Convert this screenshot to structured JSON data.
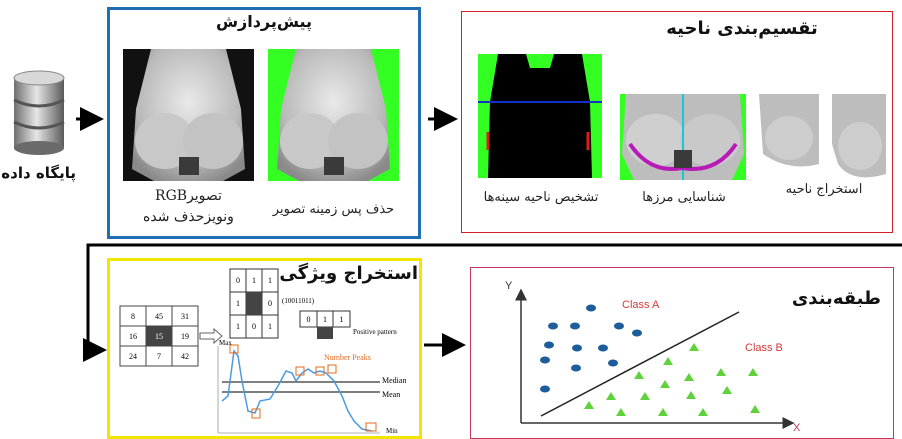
{
  "database": {
    "label": "پایگاه داده"
  },
  "preprocessing": {
    "title": "پیش‌پردازش",
    "caption_left_1": "تصویرRGB",
    "caption_left_2": "ونویزحذف شده",
    "caption_right": "حذف پس زمینه تصویر"
  },
  "segmentation": {
    "title": "تقسیم‌بندی ناحیه",
    "caption_1": "تشخیص ناحیه سینه‌ها",
    "caption_2": "شناسایی مرزها",
    "caption_3": "استخراج ناحیه"
  },
  "feature_extraction": {
    "title": "استخراج ویژگی",
    "grid_values": [
      "8",
      "45",
      "31",
      "16",
      "15",
      "19",
      "24",
      "7",
      "42"
    ],
    "binary_values": [
      "0",
      "1",
      "1",
      "1",
      "",
      "0",
      "1",
      "0",
      "1"
    ],
    "pattern_code": "(10011011)",
    "pattern_row": [
      "0",
      "1",
      "1"
    ],
    "positive_pattern": "Positive pattern",
    "max_label": "Max",
    "number_peaks": "Number Peaks",
    "median_label": "Median",
    "mean_label": "Mean",
    "min_label": "Min"
  },
  "classification": {
    "title": "طبقه‌بندی",
    "axis_y": "Y",
    "axis_x": "X",
    "class_a": "Class A",
    "class_b": "Class B"
  },
  "colors": {
    "preprocessing_border": "#1f6fb2",
    "segmentation_border": "#d21f2a",
    "feature_border": "#f2e600",
    "classification_border": "#c4385a",
    "green_bg": "#33ff22",
    "class_a_color": "#1d5d9b",
    "class_b_color": "#5fd13a"
  }
}
